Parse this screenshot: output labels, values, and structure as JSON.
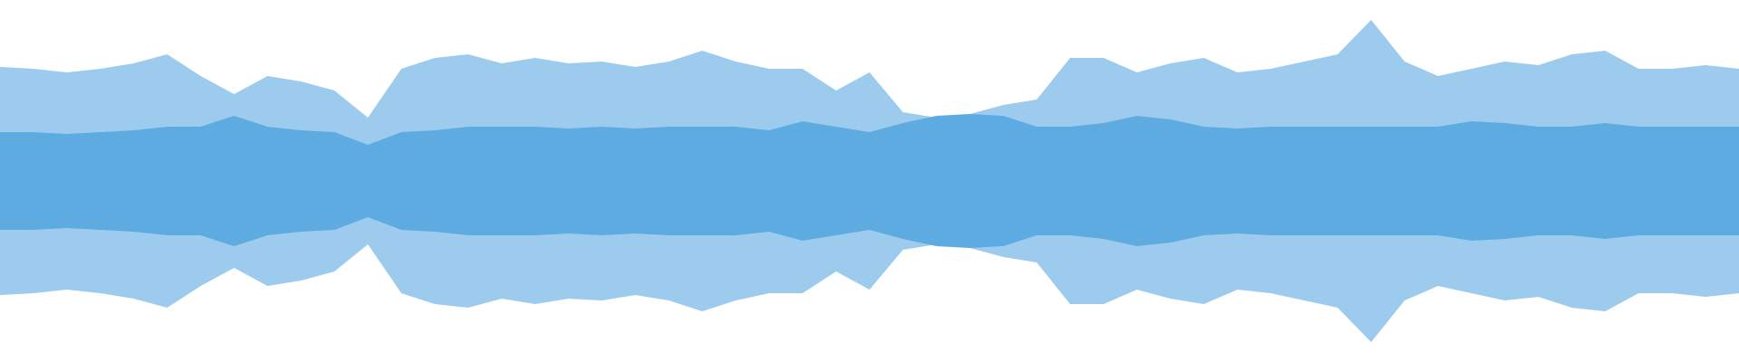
{
  "chart_data": {
    "type": "waveform",
    "color": "#5dabe1",
    "peak_color": "#9ccbee",
    "ylim": [
      -1,
      1
    ],
    "values": [
      0.63,
      0.62,
      0.6,
      0.62,
      0.65,
      0.7,
      0.58,
      0.48,
      0.58,
      0.55,
      0.5,
      0.35,
      0.62,
      0.68,
      0.7,
      0.65,
      0.68,
      0.65,
      0.66,
      0.63,
      0.66,
      0.72,
      0.66,
      0.62,
      0.62,
      0.5,
      0.6,
      0.38,
      0.35,
      0.37,
      0.42,
      0.45,
      0.68,
      0.68,
      0.6,
      0.65,
      0.68,
      0.6,
      0.62,
      0.66,
      0.7,
      0.89,
      0.66,
      0.58,
      0.62,
      0.66,
      0.64,
      0.7,
      0.72,
      0.62,
      0.62,
      0.64,
      0.62
    ],
    "core": [
      0.27,
      0.27,
      0.26,
      0.27,
      0.28,
      0.3,
      0.3,
      0.36,
      0.3,
      0.28,
      0.27,
      0.2,
      0.27,
      0.28,
      0.3,
      0.3,
      0.3,
      0.29,
      0.3,
      0.29,
      0.3,
      0.3,
      0.3,
      0.28,
      0.33,
      0.3,
      0.27,
      0.32,
      0.36,
      0.37,
      0.36,
      0.3,
      0.3,
      0.32,
      0.36,
      0.34,
      0.3,
      0.29,
      0.3,
      0.3,
      0.3,
      0.3,
      0.3,
      0.3,
      0.33,
      0.32,
      0.3,
      0.3,
      0.32,
      0.3,
      0.3,
      0.3,
      0.3
    ]
  }
}
